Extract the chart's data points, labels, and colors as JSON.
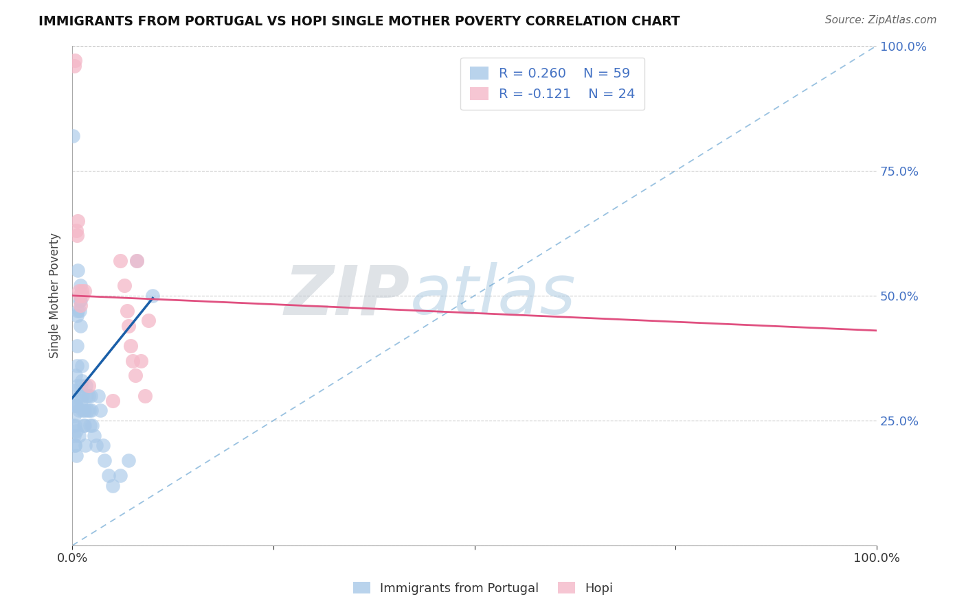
{
  "title": "IMMIGRANTS FROM PORTUGAL VS HOPI SINGLE MOTHER POVERTY CORRELATION CHART",
  "source_text": "Source: ZipAtlas.com",
  "ylabel": "Single Mother Poverty",
  "legend_labels": [
    "Immigrants from Portugal",
    "Hopi"
  ],
  "R_blue": 0.26,
  "N_blue": 59,
  "R_pink": -0.121,
  "N_pink": 24,
  "blue_color": "#a8c8e8",
  "pink_color": "#f4b8c8",
  "blue_line_color": "#1a5fa8",
  "pink_line_color": "#e05080",
  "diag_line_color": "#5599cc",
  "watermark_color": "#d0e4f0",
  "watermark_text": "ZIPatlas",
  "blue_x": [
    0.001,
    0.002,
    0.002,
    0.003,
    0.003,
    0.003,
    0.004,
    0.004,
    0.005,
    0.005,
    0.005,
    0.006,
    0.006,
    0.006,
    0.007,
    0.007,
    0.007,
    0.008,
    0.008,
    0.008,
    0.009,
    0.009,
    0.01,
    0.01,
    0.01,
    0.011,
    0.011,
    0.012,
    0.012,
    0.013,
    0.013,
    0.014,
    0.015,
    0.015,
    0.016,
    0.017,
    0.018,
    0.019,
    0.02,
    0.021,
    0.022,
    0.023,
    0.024,
    0.025,
    0.027,
    0.03,
    0.032,
    0.035,
    0.038,
    0.04,
    0.045,
    0.05,
    0.06,
    0.07,
    0.08,
    0.1,
    0.001,
    0.002,
    0.003
  ],
  "blue_y": [
    0.82,
    0.31,
    0.26,
    0.28,
    0.24,
    0.2,
    0.34,
    0.28,
    0.28,
    0.23,
    0.18,
    0.46,
    0.4,
    0.36,
    0.55,
    0.47,
    0.32,
    0.3,
    0.27,
    0.22,
    0.49,
    0.47,
    0.52,
    0.49,
    0.44,
    0.32,
    0.29,
    0.36,
    0.33,
    0.3,
    0.27,
    0.24,
    0.27,
    0.24,
    0.2,
    0.32,
    0.3,
    0.27,
    0.3,
    0.27,
    0.24,
    0.3,
    0.27,
    0.24,
    0.22,
    0.2,
    0.3,
    0.27,
    0.2,
    0.17,
    0.14,
    0.12,
    0.14,
    0.17,
    0.57,
    0.5,
    0.24,
    0.22,
    0.2
  ],
  "pink_x": [
    0.002,
    0.003,
    0.005,
    0.006,
    0.007,
    0.008,
    0.009,
    0.01,
    0.012,
    0.013,
    0.015,
    0.02,
    0.05,
    0.06,
    0.065,
    0.068,
    0.07,
    0.072,
    0.075,
    0.078,
    0.08,
    0.085,
    0.09,
    0.095
  ],
  "pink_y": [
    0.96,
    0.97,
    0.63,
    0.62,
    0.65,
    0.51,
    0.5,
    0.48,
    0.51,
    0.5,
    0.51,
    0.32,
    0.29,
    0.57,
    0.52,
    0.47,
    0.44,
    0.4,
    0.37,
    0.34,
    0.57,
    0.37,
    0.3,
    0.45
  ],
  "blue_trend_x": [
    0.0,
    0.1
  ],
  "blue_trend_y": [
    0.295,
    0.495
  ],
  "pink_trend_x": [
    0.0,
    1.0
  ],
  "pink_trend_y": [
    0.5,
    0.43
  ],
  "xlim": [
    0.0,
    1.0
  ],
  "ylim": [
    0.0,
    1.0
  ],
  "yticks": [
    0.0,
    0.25,
    0.5,
    0.75,
    1.0
  ],
  "ytick_labels": [
    "",
    "25.0%",
    "50.0%",
    "75.0%",
    "100.0%"
  ],
  "xticks": [
    0.0,
    0.25,
    0.5,
    0.75,
    1.0
  ],
  "xtick_labels": [
    "0.0%",
    "",
    "",
    "",
    "100.0%"
  ]
}
